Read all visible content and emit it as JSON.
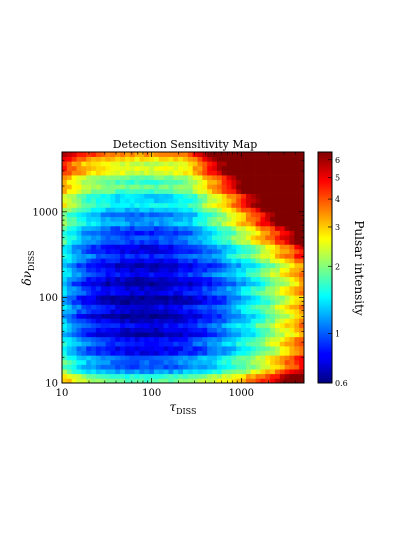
{
  "chart_data": {
    "type": "heatmap",
    "title": "Detection Sensitivity Map",
    "xlabel": "τ_DISS",
    "ylabel": "δν_DISS",
    "x_scale": "log",
    "y_scale": "log",
    "xlim": [
      10,
      5000
    ],
    "ylim": [
      10,
      5000
    ],
    "x_ticks": [
      {
        "value": 10,
        "label": "10"
      },
      {
        "value": 100,
        "label": "100"
      },
      {
        "value": 1000,
        "label": "1000"
      }
    ],
    "y_ticks": [
      {
        "value": 10,
        "label": "10"
      },
      {
        "value": 100,
        "label": "100"
      },
      {
        "value": 1000,
        "label": "1000"
      }
    ],
    "grid_size": [
      50,
      50
    ],
    "colormap": "jet",
    "colorbar": {
      "label": "Pulsar intensity",
      "scale": "log",
      "range": [
        0.6,
        6.5
      ],
      "ticks": [
        {
          "value": 0.6,
          "label": "0.6"
        },
        {
          "value": 1,
          "label": "1"
        },
        {
          "value": 2,
          "label": "2"
        },
        {
          "value": 3,
          "label": "3"
        },
        {
          "value": 4,
          "label": "4"
        },
        {
          "value": 5,
          "label": "5"
        },
        {
          "value": 6,
          "label": "6"
        }
      ]
    },
    "approx_values": {
      "min_region": {
        "tau": 80,
        "dnu": 90,
        "intensity": 0.7
      },
      "top_right_corner": {
        "tau": 5000,
        "dnu": 5000,
        "intensity": 6.0
      },
      "bottom_left_corner": {
        "tau": 10,
        "dnu": 10,
        "intensity": 3.0
      },
      "top_left_corner": {
        "tau": 10,
        "dnu": 5000,
        "intensity": 1.8
      },
      "bottom_right_corner": {
        "tau": 5000,
        "dnu": 10,
        "intensity": 2.0
      }
    }
  }
}
